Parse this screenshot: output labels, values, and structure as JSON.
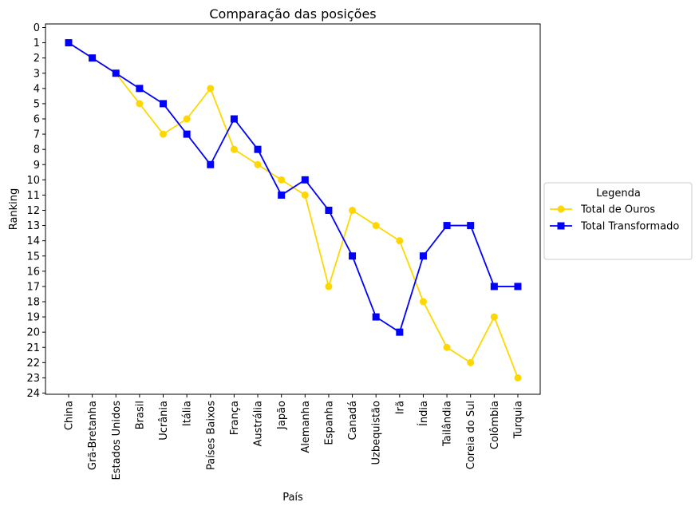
{
  "chart_data": {
    "type": "line",
    "title": "Comparação das posições",
    "xlabel": "País",
    "ylabel": "Ranking",
    "categories": [
      "China",
      "Grã-Bretanha",
      "Estados Unidos",
      "Brasil",
      "Ucrânia",
      "Itália",
      "Países Baixos",
      "França",
      "Austrália",
      "Japão",
      "Alemanha",
      "Espanha",
      "Canadá",
      "Uzbequistão",
      "Irã",
      "Índia",
      "Tailândia",
      "Coreia do Sul",
      "Colômbia",
      "Turquia"
    ],
    "ylim": [
      0,
      24
    ],
    "y_inverted": true,
    "y_ticks": [
      0,
      1,
      2,
      3,
      4,
      5,
      6,
      7,
      8,
      9,
      10,
      11,
      12,
      13,
      14,
      15,
      16,
      17,
      18,
      19,
      20,
      21,
      22,
      23,
      24
    ],
    "grid": false,
    "legend": {
      "title": "Legenda",
      "placement": "outside-right"
    },
    "series": [
      {
        "name": "Total de Ouros",
        "color": "#FFD700",
        "marker": "circle",
        "values": [
          1,
          2,
          3,
          5,
          7,
          6,
          4,
          8,
          9,
          10,
          11,
          17,
          12,
          13,
          14,
          18,
          21,
          22,
          19,
          23
        ]
      },
      {
        "name": "Total Transformado",
        "color": "#0000FF",
        "marker": "square",
        "values": [
          1,
          2,
          3,
          4,
          5,
          7,
          9,
          6,
          8,
          11,
          10,
          12,
          15,
          19,
          20,
          15,
          13,
          13,
          17,
          17
        ]
      }
    ]
  }
}
